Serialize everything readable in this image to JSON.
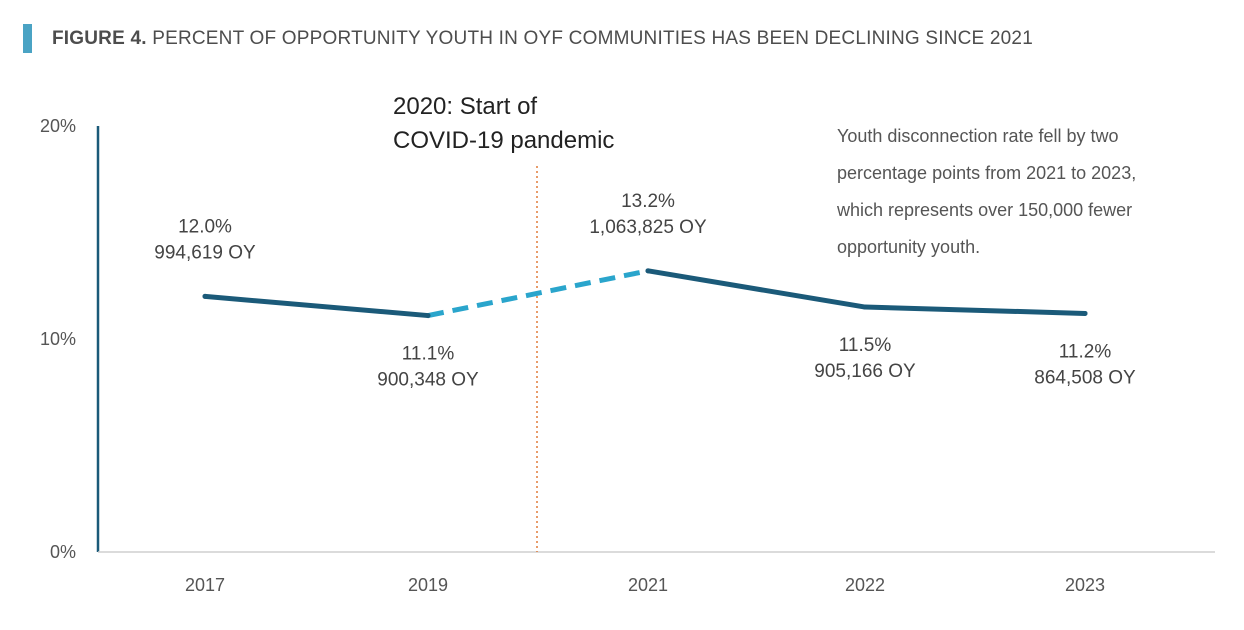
{
  "header": {
    "figure_label": "FIGURE 4.",
    "title": "PERCENT OF OPPORTUNITY YOUTH IN OYF COMMUNITIES HAS BEEN DECLINING SINCE 2021"
  },
  "colors": {
    "accent_bar": "#4aa3c4",
    "line": "#1b5a79",
    "dashed": "#2aa5cc",
    "axis": "#1b5a79",
    "event_line": "#e07b39"
  },
  "chart_data": {
    "type": "line",
    "categories": [
      "2017",
      "2019",
      "2021",
      "2022",
      "2023"
    ],
    "yticks": [
      "20%",
      "10%",
      "0%"
    ],
    "ylim": [
      0,
      20
    ],
    "grid": false,
    "series": [
      {
        "values": [
          12.0,
          11.1,
          13.2,
          11.5,
          11.2
        ]
      }
    ],
    "data_labels": [
      {
        "pct": "12.0%",
        "count": "994,619 OY"
      },
      {
        "pct": "11.1%",
        "count": "900,348 OY"
      },
      {
        "pct": "13.2%",
        "count": "1,063,825 OY"
      },
      {
        "pct": "11.5%",
        "count": "905,166 OY"
      },
      {
        "pct": "11.2%",
        "count": "864,508 OY"
      }
    ],
    "dashed_segment": [
      "2019",
      "2021"
    ],
    "event": {
      "line1": "2020: Start of",
      "line2": "COVID-19 pandemic"
    },
    "annotation": [
      "Youth disconnection rate fell by two",
      "percentage points from 2021 to 2023,",
      "which represents over 150,000 fewer",
      "opportunity youth."
    ]
  }
}
